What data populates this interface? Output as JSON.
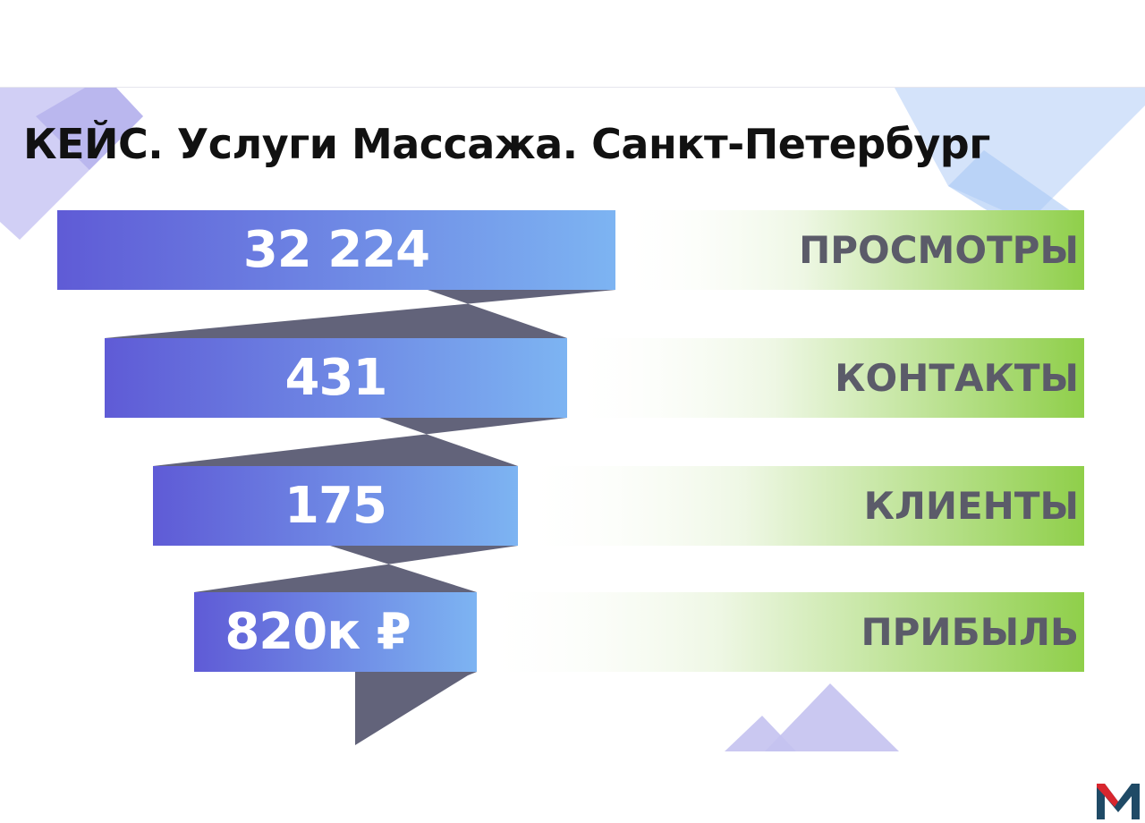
{
  "title": "КЕЙС. Услуги Массажа. Санкт-Петербург",
  "colors": {
    "bar_start": "#5f5bd6",
    "bar_end": "#7db4f2",
    "label_band_end": "#8fcf4a",
    "ribbon": "#62637a",
    "label_text": "#5b5b69",
    "deco_violet": "#b9b7ee",
    "deco_blue": "#b9d5f8"
  },
  "stages": [
    {
      "value": "32 224",
      "label": "ПРОСМОТРЫ"
    },
    {
      "value": "431",
      "label": "КОНТАКТЫ"
    },
    {
      "value": "175",
      "label": "КЛИЕНТЫ"
    },
    {
      "value": "820к ₽",
      "label": "ПРИБЫЛЬ"
    }
  ],
  "logo_icon": "m-logo-icon"
}
